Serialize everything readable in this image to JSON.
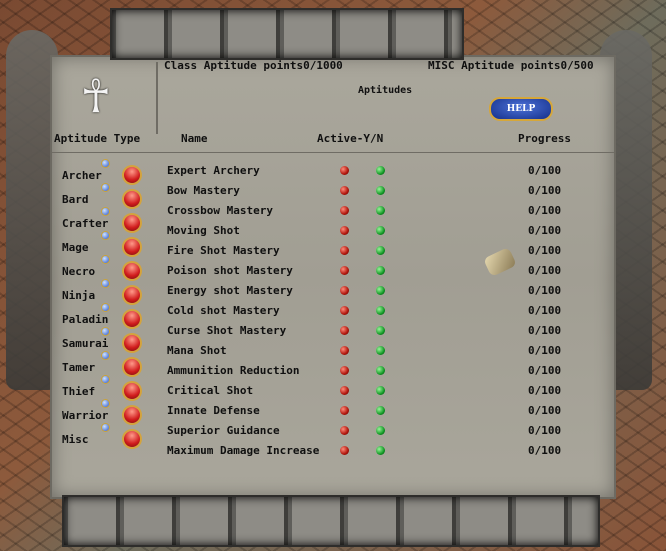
{
  "header": {
    "class_points": "Class Aptitude points0/1000",
    "misc_points": "MISC Aptitude points0/500",
    "title": "Aptitudes",
    "help_button": "HELP"
  },
  "columns": {
    "aptitude_type": "Aptitude Type",
    "name": "Name",
    "active": "Active-Y/N",
    "progress": "Progress"
  },
  "classes": [
    "Archer",
    "Bard",
    "Crafter",
    "Mage",
    "Necro",
    "Ninja",
    "Paladin",
    "Samurai",
    "Tamer",
    "Thief",
    "Warrior",
    "Misc"
  ],
  "aptitudes": [
    {
      "name": "Expert Archery",
      "progress": "0/100"
    },
    {
      "name": "Bow Mastery",
      "progress": "0/100"
    },
    {
      "name": "Crossbow Mastery",
      "progress": "0/100"
    },
    {
      "name": "Moving Shot",
      "progress": "0/100"
    },
    {
      "name": "Fire Shot Mastery",
      "progress": "0/100"
    },
    {
      "name": "Poison shot Mastery",
      "progress": "0/100"
    },
    {
      "name": "Energy shot Mastery",
      "progress": "0/100"
    },
    {
      "name": "Cold shot Mastery",
      "progress": "0/100"
    },
    {
      "name": "Curse Shot Mastery",
      "progress": "0/100"
    },
    {
      "name": "Mana Shot",
      "progress": "0/100"
    },
    {
      "name": "Ammunition Reduction",
      "progress": "0/100"
    },
    {
      "name": "Critical Shot",
      "progress": "0/100"
    },
    {
      "name": "Innate Defense",
      "progress": "0/100"
    },
    {
      "name": "Superior Guidance",
      "progress": "0/100"
    },
    {
      "name": "Maximum Damage Increase",
      "progress": "0/100"
    }
  ]
}
